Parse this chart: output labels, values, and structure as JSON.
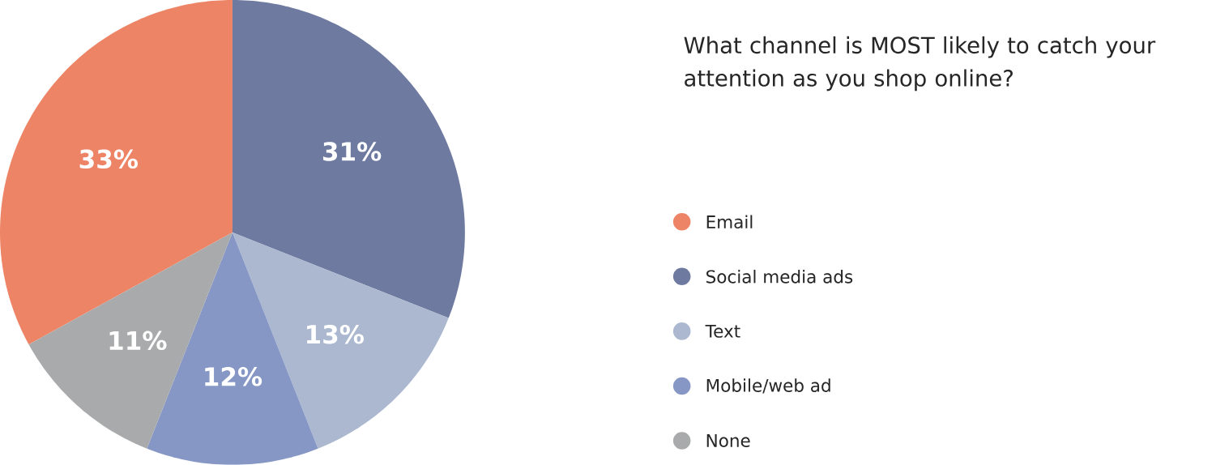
{
  "chart_data": {
    "type": "pie",
    "title": "What channel is MOST likely to catch your attention as you shop online?",
    "categories": [
      "Email",
      "Social media ads",
      "Text",
      "Mobile/web ad",
      "None"
    ],
    "values": [
      33,
      31,
      13,
      12,
      11
    ],
    "value_labels": [
      "33%",
      "31%",
      "13%",
      "12%",
      "11%"
    ],
    "colors": [
      "#ee8466",
      "#6e7aa0",
      "#abb8cf",
      "#8697c6",
      "#a9aaab"
    ],
    "legend": "right"
  }
}
